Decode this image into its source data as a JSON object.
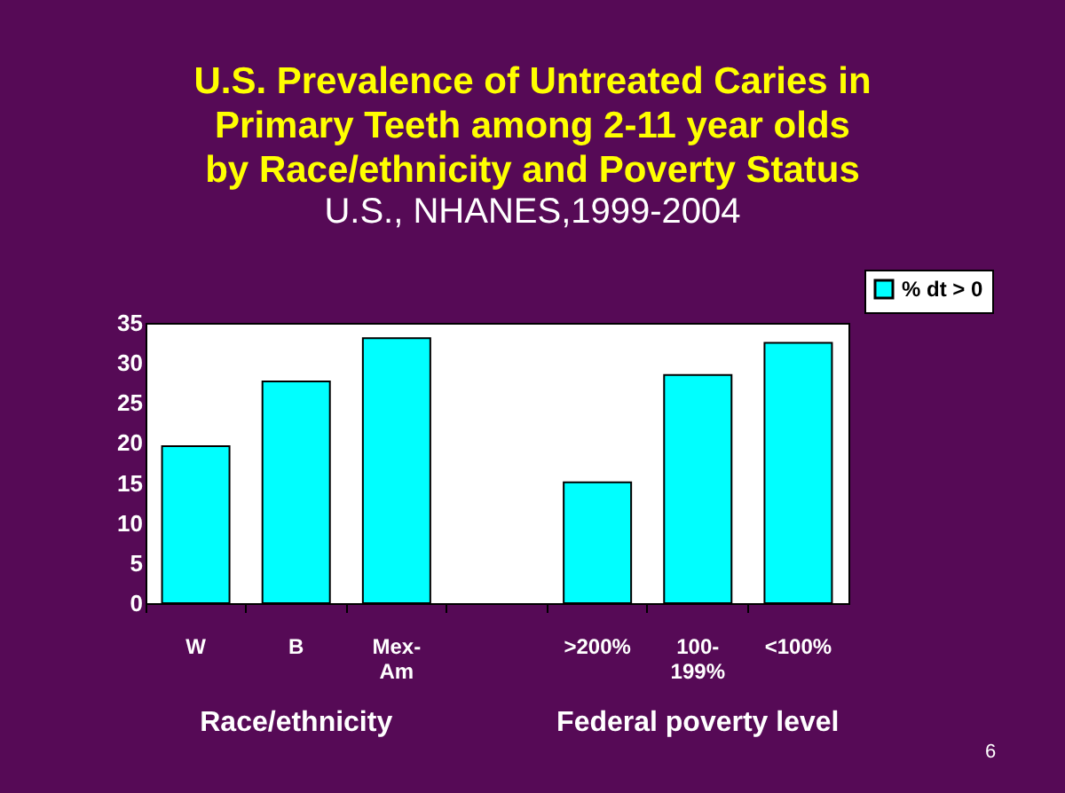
{
  "chart_data": {
    "type": "bar",
    "title": [
      "U.S. Prevalence of Untreated Caries in",
      "Primary Teeth among 2-11 year olds",
      "by Race/ethnicity and Poverty Status"
    ],
    "subtitle": "U.S., NHANES,1999-2004",
    "categories": [
      "W",
      "B",
      "Mex-Am",
      null,
      ">200%",
      "100-199%",
      "<100%"
    ],
    "series": [
      {
        "name": "% dt > 0",
        "color": "#00ffff",
        "values": [
          19.6,
          27.7,
          33.1,
          null,
          15.1,
          28.5,
          32.5
        ]
      }
    ],
    "ylim": [
      0,
      35
    ],
    "yticks": [
      0,
      5,
      10,
      15,
      20,
      25,
      30,
      35
    ],
    "grid": false,
    "legend": "top right",
    "annotations": [
      "Race/ethnicity",
      "Federal poverty level",
      "6"
    ]
  }
}
